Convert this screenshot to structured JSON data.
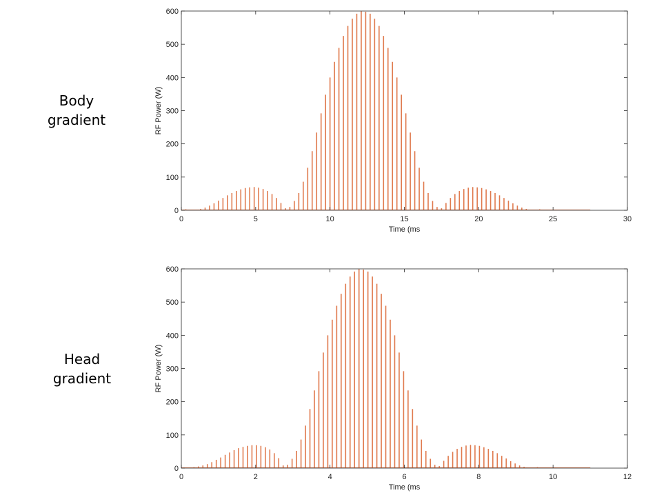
{
  "side_labels": [
    {
      "line1": "Body",
      "line2": "gradient"
    },
    {
      "line1": "Head",
      "line2": "gradient"
    }
  ],
  "chart_data": [
    {
      "type": "bar",
      "title": "",
      "xlabel": "Time (ms",
      "ylabel": "RF Power (W)",
      "xlim": [
        0,
        30
      ],
      "ylim": [
        0,
        600
      ],
      "xticks": [
        0,
        5,
        10,
        15,
        20,
        25,
        30
      ],
      "yticks": [
        0,
        100,
        200,
        300,
        400,
        500,
        600
      ],
      "grid": false,
      "bar_color": "#e07b4f",
      "x": [
        0.3,
        0.6,
        0.9,
        1.3,
        1.6,
        1.9,
        2.2,
        2.5,
        2.8,
        3.1,
        3.4,
        3.7,
        4.0,
        4.3,
        4.6,
        4.9,
        5.2,
        5.5,
        5.8,
        6.1,
        6.4,
        6.7,
        7.0,
        7.3,
        7.6,
        7.9,
        8.2,
        8.5,
        8.8,
        9.1,
        9.4,
        9.7,
        10.0,
        10.3,
        10.6,
        10.9,
        11.2,
        11.5,
        11.8,
        12.1,
        12.4,
        12.7,
        13.0,
        13.3,
        13.6,
        13.9,
        14.2,
        14.5,
        14.8,
        15.1,
        15.4,
        15.7,
        16.0,
        16.3,
        16.6,
        16.9,
        17.2,
        17.5,
        17.8,
        18.1,
        18.4,
        18.7,
        19.0,
        19.3,
        19.6,
        19.9,
        20.2,
        20.5,
        20.8,
        21.1,
        21.4,
        21.7,
        22.0,
        22.3,
        22.6,
        22.9,
        23.2,
        23.5,
        23.8,
        24.1,
        24.4,
        24.7,
        25.0,
        25.3,
        25.6,
        26.0,
        26.5,
        27.0,
        27.5
      ],
      "values": [
        3,
        2,
        2,
        4,
        8,
        14,
        21,
        29,
        37,
        45,
        52,
        58,
        63,
        67,
        69,
        70,
        68,
        64,
        58,
        49,
        37,
        22,
        6,
        10,
        28,
        52,
        86,
        128,
        178,
        234,
        292,
        348,
        400,
        447,
        489,
        525,
        555,
        577,
        592,
        599,
        598,
        592,
        577,
        555,
        525,
        489,
        447,
        400,
        348,
        292,
        234,
        178,
        128,
        86,
        52,
        28,
        10,
        6,
        22,
        37,
        49,
        58,
        64,
        68,
        70,
        69,
        67,
        63,
        58,
        52,
        45,
        37,
        29,
        21,
        14,
        8,
        4,
        2,
        2,
        3,
        2,
        2,
        1,
        1,
        1,
        1,
        1,
        1,
        1
      ]
    },
    {
      "type": "bar",
      "title": "",
      "xlabel": "Time (ms",
      "ylabel": "RF Power (W)",
      "xlim": [
        0,
        12
      ],
      "ylim": [
        0,
        600
      ],
      "xticks": [
        0,
        2,
        4,
        6,
        8,
        10,
        12
      ],
      "yticks": [
        0,
        100,
        200,
        300,
        400,
        500,
        600
      ],
      "grid": false,
      "bar_color": "#e07b4f",
      "x": [
        0.1,
        0.22,
        0.34,
        0.46,
        0.58,
        0.7,
        0.82,
        0.94,
        1.06,
        1.18,
        1.3,
        1.42,
        1.54,
        1.66,
        1.78,
        1.9,
        2.02,
        2.14,
        2.26,
        2.38,
        2.5,
        2.62,
        2.74,
        2.86,
        2.98,
        3.1,
        3.22,
        3.34,
        3.46,
        3.58,
        3.7,
        3.82,
        3.94,
        4.06,
        4.18,
        4.3,
        4.42,
        4.54,
        4.66,
        4.78,
        4.9,
        5.02,
        5.14,
        5.26,
        5.38,
        5.5,
        5.62,
        5.74,
        5.86,
        5.98,
        6.1,
        6.22,
        6.34,
        6.46,
        6.58,
        6.7,
        6.82,
        6.94,
        7.06,
        7.18,
        7.3,
        7.42,
        7.54,
        7.66,
        7.78,
        7.9,
        8.02,
        8.14,
        8.26,
        8.38,
        8.5,
        8.62,
        8.74,
        8.86,
        8.98,
        9.1,
        9.22,
        9.34,
        9.46,
        9.58,
        9.7,
        9.82,
        9.94,
        10.06,
        10.18,
        10.3,
        10.45,
        10.6,
        10.8,
        11.0
      ],
      "values": [
        1,
        2,
        3,
        5,
        8,
        12,
        18,
        25,
        32,
        40,
        47,
        54,
        60,
        64,
        67,
        69,
        69,
        67,
        63,
        56,
        45,
        30,
        8,
        10,
        28,
        52,
        86,
        128,
        178,
        234,
        292,
        348,
        400,
        447,
        489,
        525,
        555,
        577,
        592,
        599,
        598,
        592,
        577,
        555,
        525,
        489,
        447,
        400,
        348,
        292,
        234,
        178,
        128,
        86,
        52,
        28,
        10,
        6,
        22,
        37,
        49,
        58,
        64,
        68,
        70,
        69,
        67,
        63,
        58,
        52,
        45,
        37,
        29,
        21,
        14,
        8,
        4,
        2,
        2,
        3,
        2,
        2,
        1,
        1,
        1,
        1,
        1,
        1,
        1,
        1
      ]
    }
  ]
}
